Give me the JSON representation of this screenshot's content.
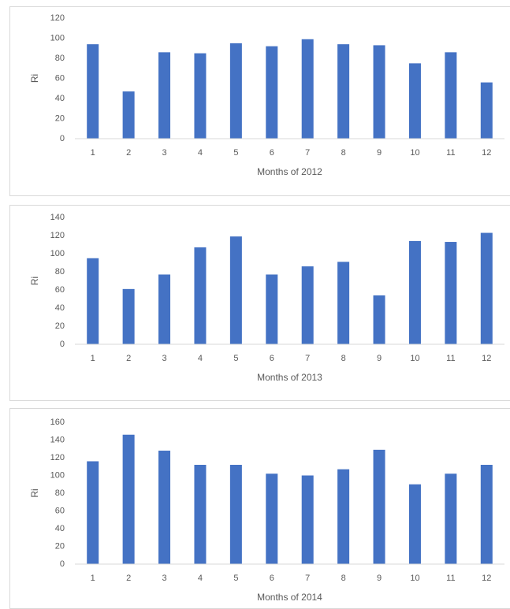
{
  "chart_data": [
    {
      "type": "bar",
      "xlabel": "Months of 2012",
      "ylabel": "Ri",
      "categories": [
        "1",
        "2",
        "3",
        "4",
        "5",
        "6",
        "7",
        "8",
        "9",
        "10",
        "11",
        "12"
      ],
      "values": [
        94,
        47,
        86,
        85,
        95,
        92,
        99,
        94,
        93,
        75,
        86,
        56
      ],
      "color": "#4472c4",
      "ylim": [
        0,
        120
      ],
      "yticks": [
        0,
        20,
        40,
        60,
        80,
        100,
        120
      ],
      "grid": false
    },
    {
      "type": "bar",
      "xlabel": "Months of 2013",
      "ylabel": "Ri",
      "categories": [
        "1",
        "2",
        "3",
        "4",
        "5",
        "6",
        "7",
        "8",
        "9",
        "10",
        "11",
        "12"
      ],
      "values": [
        95,
        61,
        77,
        107,
        119,
        77,
        86,
        91,
        54,
        114,
        113,
        123
      ],
      "color": "#4472c4",
      "ylim": [
        0,
        140
      ],
      "yticks": [
        0,
        20,
        40,
        60,
        80,
        100,
        120,
        140
      ],
      "grid": false
    },
    {
      "type": "bar",
      "xlabel": "Months of 2014",
      "ylabel": "Ri",
      "categories": [
        "1",
        "2",
        "3",
        "4",
        "5",
        "6",
        "7",
        "8",
        "9",
        "10",
        "11",
        "12"
      ],
      "values": [
        116,
        146,
        128,
        112,
        112,
        102,
        100,
        107,
        129,
        90,
        102,
        112
      ],
      "color": "#4472c4",
      "ylim": [
        0,
        160
      ],
      "yticks": [
        0,
        20,
        40,
        60,
        80,
        100,
        120,
        140,
        160
      ],
      "grid": false
    }
  ]
}
